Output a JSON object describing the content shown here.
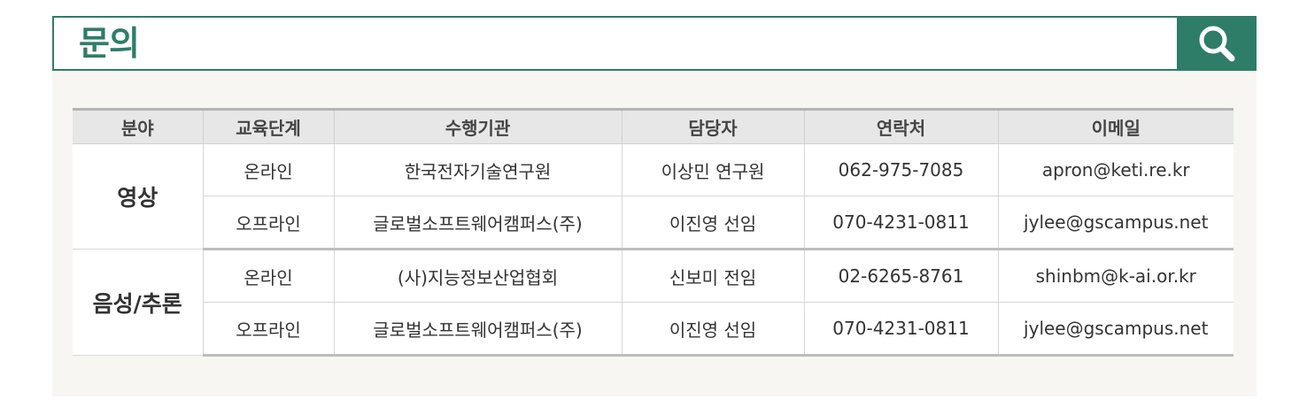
{
  "header": {
    "title": "문의",
    "search_icon": "search-icon"
  },
  "colors": {
    "accent": "#2e7d68",
    "panel_bg": "#f7f6f2",
    "table_header_bg": "#e6e7e6"
  },
  "table": {
    "columns": [
      "분야",
      "교육단계",
      "수행기관",
      "담당자",
      "연락처",
      "이메일"
    ],
    "groups": [
      {
        "field": "영상",
        "rows": [
          [
            "온라인",
            "한국전자기술연구원",
            "이상민 연구원",
            "062-975-7085",
            "apron@keti.re.kr"
          ],
          [
            "오프라인",
            "글로벌소프트웨어캠퍼스(주)",
            "이진영 선임",
            "070-4231-0811",
            "jylee@gscampus.net"
          ]
        ]
      },
      {
        "field": "음성/추론",
        "rows": [
          [
            "온라인",
            "(사)지능정보산업협회",
            "신보미 전임",
            "02-6265-8761",
            "shinbm@k-ai.or.kr"
          ],
          [
            "오프라인",
            "글로벌소프트웨어캠퍼스(주)",
            "이진영 선임",
            "070-4231-0811",
            "jylee@gscampus.net"
          ]
        ]
      }
    ]
  }
}
